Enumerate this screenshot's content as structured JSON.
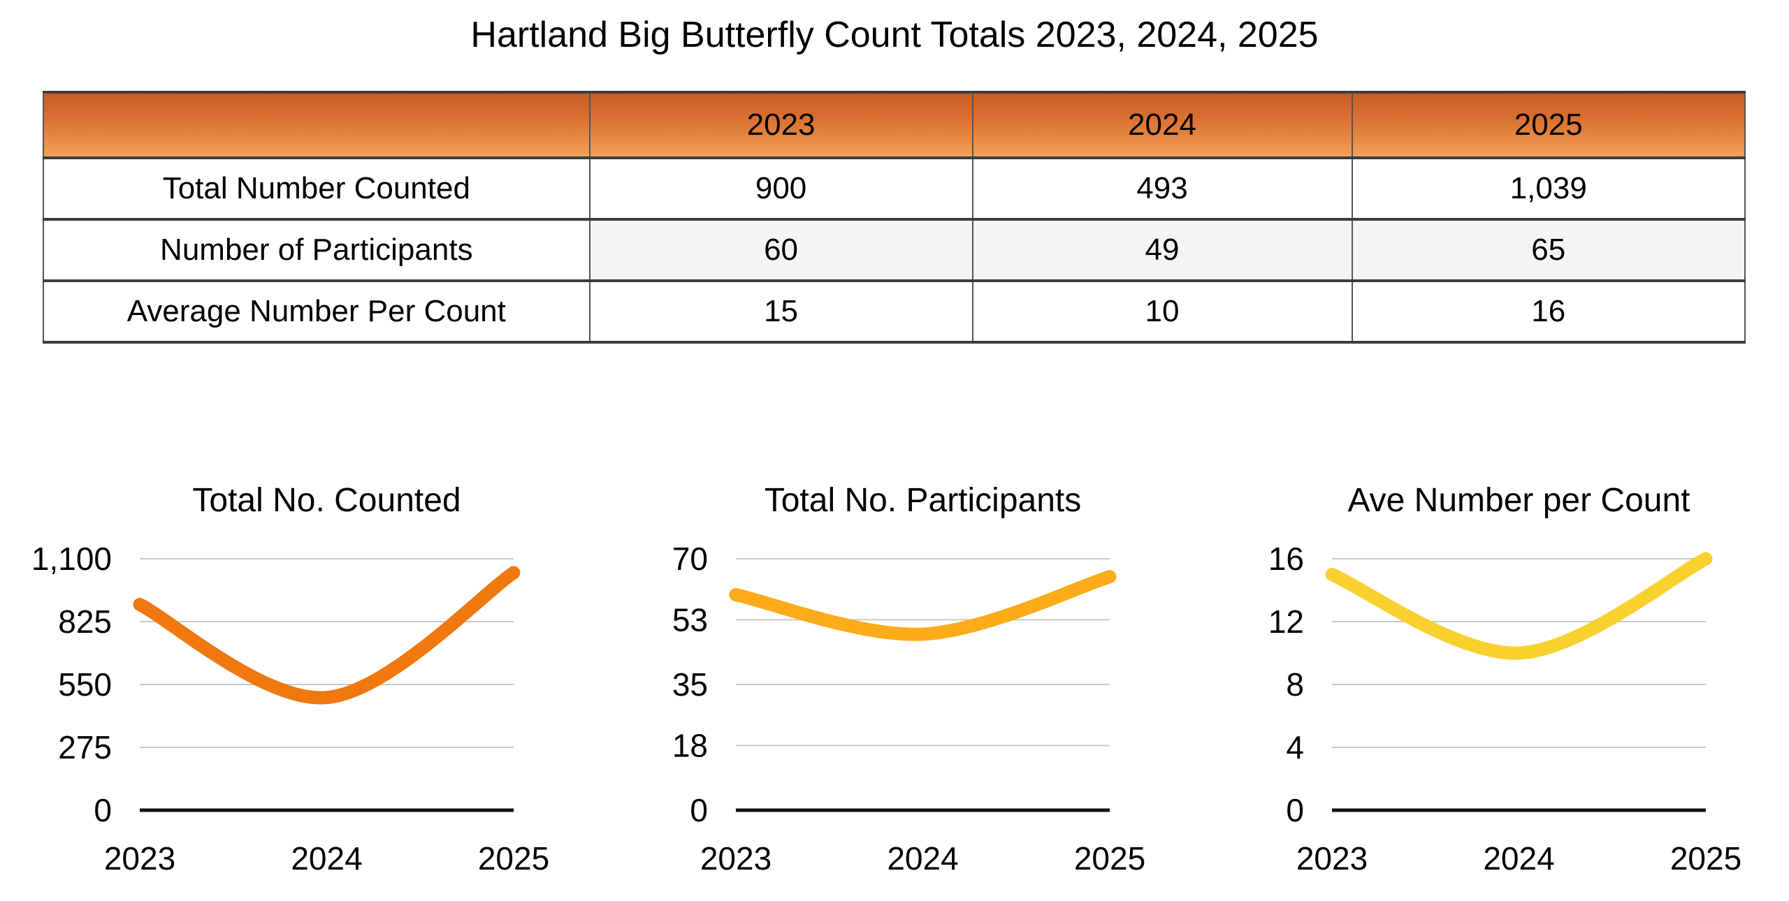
{
  "title": "Hartland Big Butterfly Count Totals 2023, 2024, 2025",
  "table": {
    "columns": [
      "",
      "2023",
      "2024",
      "2025"
    ],
    "rows": [
      {
        "label": "Total Number Counted",
        "values": [
          "900",
          "493",
          "1,039"
        ]
      },
      {
        "label": "Number of Participants",
        "values": [
          "60",
          "49",
          "65"
        ]
      },
      {
        "label": "Average Number Per Count",
        "values": [
          "15",
          "10",
          "16"
        ]
      }
    ]
  },
  "chart_data": [
    {
      "type": "line",
      "title": "Total No. Counted",
      "categories": [
        "2023",
        "2024",
        "2025"
      ],
      "values": [
        900,
        493,
        1039
      ],
      "ylim": [
        0,
        1100
      ],
      "yticks": [
        0,
        275,
        550,
        825,
        1100
      ],
      "ytick_labels": [
        "0",
        "275",
        "550",
        "825",
        "1,100"
      ],
      "xlabel": "",
      "ylabel": "",
      "grid": true,
      "legend": "none",
      "line_color": "#F0780F"
    },
    {
      "type": "line",
      "title": "Total No. Participants",
      "categories": [
        "2023",
        "2024",
        "2025"
      ],
      "values": [
        60,
        49,
        65
      ],
      "ylim": [
        0,
        70
      ],
      "yticks": [
        0,
        18,
        35,
        53,
        70
      ],
      "ytick_labels": [
        "0",
        "18",
        "35",
        "53",
        "70"
      ],
      "xlabel": "",
      "ylabel": "",
      "grid": true,
      "legend": "none",
      "line_color": "#FBAC18"
    },
    {
      "type": "line",
      "title": "Ave Number per Count",
      "categories": [
        "2023",
        "2024",
        "2025"
      ],
      "values": [
        15,
        10,
        16
      ],
      "ylim": [
        0,
        16
      ],
      "yticks": [
        0,
        4,
        8,
        12,
        16
      ],
      "ytick_labels": [
        "0",
        "4",
        "8",
        "12",
        "16"
      ],
      "xlabel": "",
      "ylabel": "",
      "grid": true,
      "legend": "none",
      "line_color": "#F9D12F"
    }
  ],
  "colors": {
    "header_gradient_top": "#c75d24",
    "header_gradient_bottom": "#f2a157",
    "table_border_dark": "#3d3d3d",
    "table_border_light": "#555555",
    "row_band": "#f4f4f2",
    "gridline": "#c9c9c9",
    "axis": "#111111"
  }
}
